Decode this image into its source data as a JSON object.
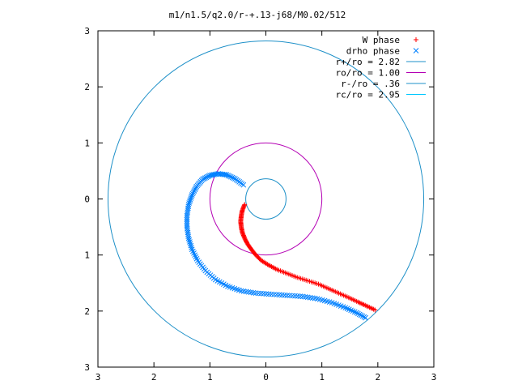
{
  "chart_data": {
    "type": "scatter",
    "title": "m1/n1.5/q2.0/r-+.13-j68/M0.02/512",
    "xlabel": "",
    "ylabel": "",
    "xlim": [
      -3,
      3
    ],
    "ylim": [
      -3,
      3
    ],
    "x_ticks": [
      -3,
      -2,
      -1,
      0,
      1,
      2,
      3
    ],
    "y_ticks": [
      -3,
      -2,
      -1,
      0,
      1,
      2,
      3
    ],
    "x_tick_labels": [
      "3",
      "2",
      "1",
      "0",
      "1",
      "2",
      "3"
    ],
    "y_tick_labels": [
      "3",
      "2",
      "1",
      "0",
      "1",
      "2",
      "3"
    ],
    "grid": false,
    "legend_position": "top-right",
    "legend": [
      {
        "label": "W phase",
        "marker": "+",
        "color": "#ff0000"
      },
      {
        "label": "drho phase",
        "marker": "x",
        "color": "#0080ff"
      },
      {
        "label": "r+/ro = 2.82",
        "line": true,
        "color": "#1e90c8"
      },
      {
        "label": "ro/ro = 1.00",
        "line": true,
        "color": "#b400b4"
      },
      {
        "label": "r-/ro = .36",
        "line": true,
        "color": "#1e90c8"
      },
      {
        "label": "rc/ro = 2.95",
        "line": true,
        "color": "#00c8ff"
      }
    ],
    "circles": [
      {
        "name": "r+/ro = 2.82",
        "radius": 2.82,
        "color": "#1e90c8"
      },
      {
        "name": "ro/ro = 1.00",
        "radius": 1.0,
        "color": "#b400b4"
      },
      {
        "name": "r-/ro = .36",
        "radius": 0.36,
        "color": "#1e90c8"
      }
    ],
    "series": [
      {
        "name": "W phase",
        "marker": "+",
        "color": "#ff0000",
        "points": [
          [
            -0.38,
            -0.1
          ],
          [
            -0.42,
            -0.2
          ],
          [
            -0.44,
            -0.3
          ],
          [
            -0.45,
            -0.4
          ],
          [
            -0.44,
            -0.5
          ],
          [
            -0.42,
            -0.6
          ],
          [
            -0.38,
            -0.7
          ],
          [
            -0.33,
            -0.8
          ],
          [
            -0.26,
            -0.9
          ],
          [
            -0.18,
            -1.0
          ],
          [
            -0.08,
            -1.1
          ],
          [
            0.05,
            -1.18
          ],
          [
            0.2,
            -1.26
          ],
          [
            0.38,
            -1.33
          ],
          [
            0.56,
            -1.4
          ],
          [
            0.75,
            -1.46
          ],
          [
            0.94,
            -1.52
          ],
          [
            1.12,
            -1.6
          ],
          [
            1.3,
            -1.68
          ],
          [
            1.48,
            -1.76
          ],
          [
            1.65,
            -1.84
          ],
          [
            1.8,
            -1.91
          ],
          [
            1.95,
            -1.98
          ]
        ]
      },
      {
        "name": "drho phase",
        "marker": "x",
        "color": "#0080ff",
        "points": [
          [
            -0.4,
            0.25
          ],
          [
            -0.55,
            0.36
          ],
          [
            -0.7,
            0.43
          ],
          [
            -0.85,
            0.45
          ],
          [
            -1.0,
            0.42
          ],
          [
            -1.13,
            0.35
          ],
          [
            -1.24,
            0.22
          ],
          [
            -1.32,
            0.07
          ],
          [
            -1.38,
            -0.1
          ],
          [
            -1.41,
            -0.3
          ],
          [
            -1.41,
            -0.5
          ],
          [
            -1.38,
            -0.7
          ],
          [
            -1.32,
            -0.9
          ],
          [
            -1.22,
            -1.1
          ],
          [
            -1.08,
            -1.28
          ],
          [
            -0.9,
            -1.44
          ],
          [
            -0.68,
            -1.56
          ],
          [
            -0.44,
            -1.64
          ],
          [
            -0.18,
            -1.68
          ],
          [
            0.1,
            -1.7
          ],
          [
            0.38,
            -1.72
          ],
          [
            0.66,
            -1.74
          ],
          [
            0.92,
            -1.78
          ],
          [
            1.18,
            -1.85
          ],
          [
            1.42,
            -1.94
          ],
          [
            1.62,
            -2.03
          ],
          [
            1.78,
            -2.12
          ]
        ]
      }
    ]
  }
}
